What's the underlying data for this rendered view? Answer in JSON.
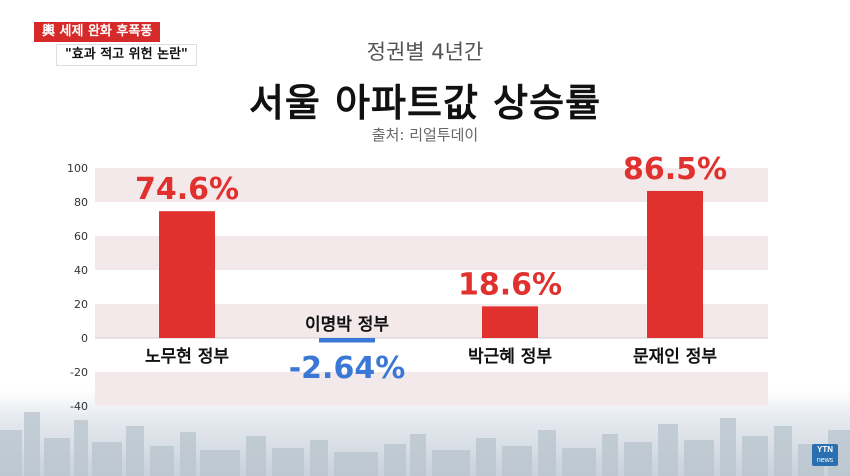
{
  "badges": {
    "red": "輿 세제 완화 후폭풍",
    "white": "\"효과 적고 위헌 논란\""
  },
  "header": {
    "subtitle": "정권별 4년간",
    "title": "서울 아파트값 상승률",
    "source": "출처: 리얼투데이"
  },
  "watermark": {
    "line1": "YTN",
    "line2": "news"
  },
  "colors": {
    "bar": "#e0312f",
    "label_positive": "#e0312f",
    "label_negative": "#3b78d6",
    "band": "#f3e9ea"
  },
  "chart_data": {
    "type": "bar",
    "categories": [
      "노무현 정부",
      "이명박 정부",
      "박근혜 정부",
      "문재인 정부"
    ],
    "values": [
      74.6,
      -2.64,
      18.6,
      86.5
    ],
    "value_labels": [
      "74.6%",
      "-2.64%",
      "18.6%",
      "86.5%"
    ],
    "y_ticks": [
      "100",
      "80",
      "60",
      "40",
      "20",
      "0",
      "-20",
      "-40"
    ],
    "ylim": [
      -40,
      100
    ],
    "grid": "horizontal bands",
    "legend": "none"
  }
}
